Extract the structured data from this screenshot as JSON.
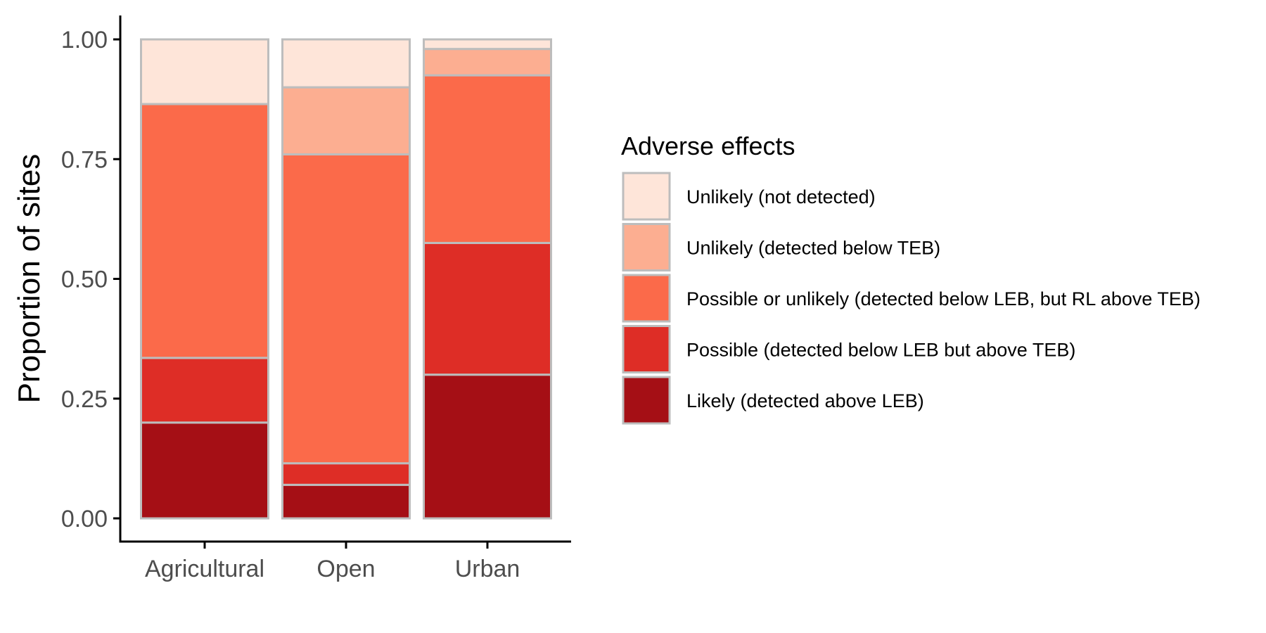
{
  "chart_data": {
    "type": "bar",
    "stacked": true,
    "categories": [
      "Agricultural",
      "Open",
      "Urban"
    ],
    "series": [
      {
        "name": "Likely (detected above LEB)",
        "color": "#a50f15",
        "values": [
          0.2,
          0.07,
          0.3
        ]
      },
      {
        "name": "Possible (detected below LEB but above TEB)",
        "color": "#de2d26",
        "values": [
          0.135,
          0.045,
          0.275
        ]
      },
      {
        "name": "Possible or unlikely (detected below LEB, but RL above TEB)",
        "color": "#fb6a4a",
        "values": [
          0.53,
          0.645,
          0.35
        ]
      },
      {
        "name": "Unlikely (detected below TEB)",
        "color": "#fcae91",
        "values": [
          0.0,
          0.14,
          0.055
        ]
      },
      {
        "name": "Unlikely (not detected)",
        "color": "#fee5d9",
        "values": [
          0.135,
          0.1,
          0.02
        ]
      }
    ],
    "xlabel": "",
    "ylabel": "Proportion of sites",
    "ylim": [
      0,
      1
    ],
    "yticks": [
      "0.00",
      "0.25",
      "0.50",
      "0.75",
      "1.00"
    ],
    "legend": {
      "title": "Adverse effects",
      "position": "right",
      "order": [
        "Unlikely (not detected)",
        "Unlikely (detected below TEB)",
        "Possible or unlikely (detected below LEB, but RL above TEB)",
        "Possible (detected below LEB but above TEB)",
        "Likely (detected above LEB)"
      ]
    },
    "grid": false,
    "bar_outline_color": "#bdbdbd"
  }
}
